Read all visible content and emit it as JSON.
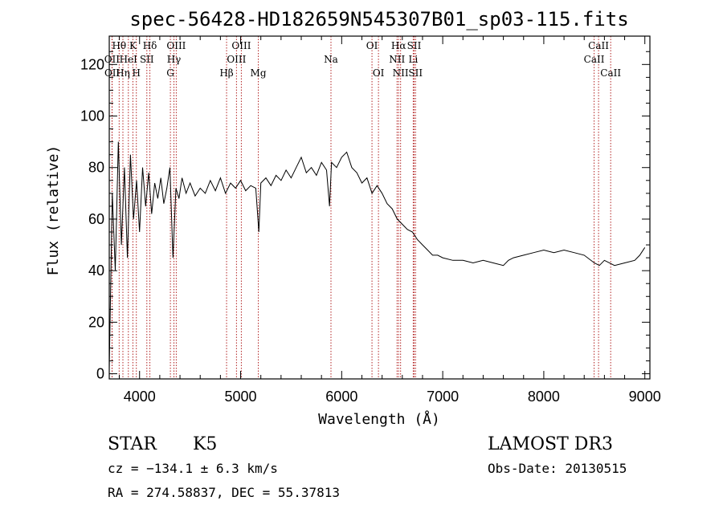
{
  "chart_data": {
    "type": "line",
    "title": "spec-56428-HD182659N545307B01_sp03-115.fits",
    "xlabel": "Wavelength (Å)",
    "ylabel": "Flux (relative)",
    "xlim": [
      3700,
      9050
    ],
    "ylim": [
      -2,
      131
    ],
    "xticks": [
      4000,
      5000,
      6000,
      7000,
      8000,
      9000
    ],
    "yticks": [
      0,
      20,
      40,
      60,
      80,
      100,
      120
    ],
    "line_color": "#000000",
    "marker_color": "#b22222",
    "series": [
      {
        "name": "flux",
        "x": [
          3700,
          3730,
          3760,
          3790,
          3820,
          3850,
          3880,
          3910,
          3940,
          3970,
          4000,
          4030,
          4060,
          4090,
          4120,
          4150,
          4180,
          4210,
          4240,
          4270,
          4300,
          4330,
          4360,
          4390,
          4420,
          4460,
          4500,
          4550,
          4600,
          4650,
          4700,
          4750,
          4800,
          4850,
          4900,
          4950,
          5000,
          5050,
          5100,
          5150,
          5180,
          5200,
          5250,
          5300,
          5350,
          5400,
          5450,
          5500,
          5550,
          5600,
          5650,
          5700,
          5750,
          5800,
          5850,
          5880,
          5900,
          5950,
          6000,
          6050,
          6100,
          6150,
          6200,
          6250,
          6300,
          6350,
          6400,
          6450,
          6500,
          6550,
          6600,
          6650,
          6700,
          6750,
          6800,
          6850,
          6900,
          6950,
          7000,
          7100,
          7200,
          7300,
          7400,
          7500,
          7600,
          7650,
          7700,
          7800,
          7900,
          8000,
          8100,
          8200,
          8300,
          8400,
          8500,
          8550,
          8600,
          8700,
          8800,
          8900,
          8950,
          9000
        ],
        "y": [
          2,
          70,
          40,
          90,
          50,
          80,
          45,
          85,
          60,
          75,
          55,
          80,
          65,
          78,
          62,
          74,
          68,
          76,
          66,
          72,
          80,
          45,
          72,
          68,
          76,
          70,
          74,
          69,
          72,
          70,
          75,
          71,
          76,
          70,
          74,
          72,
          75,
          71,
          73,
          72,
          55,
          74,
          76,
          73,
          77,
          75,
          79,
          76,
          80,
          84,
          78,
          80,
          77,
          82,
          79,
          65,
          82,
          80,
          84,
          86,
          80,
          78,
          74,
          76,
          70,
          73,
          70,
          66,
          64,
          60,
          58,
          56,
          55,
          52,
          50,
          48,
          46,
          46,
          45,
          44,
          44,
          43,
          44,
          43,
          42,
          44,
          45,
          46,
          47,
          48,
          47,
          48,
          47,
          46,
          43,
          42,
          44,
          42,
          43,
          44,
          46,
          49
        ]
      }
    ],
    "spectral_lines": [
      {
        "label": "Hθ",
        "x": 3798,
        "row": 0
      },
      {
        "label": "OII",
        "x": 3727,
        "row": 1
      },
      {
        "label": "OII",
        "x": 3729,
        "row": 2
      },
      {
        "label": "Hη",
        "x": 3835,
        "row": 2
      },
      {
        "label": "HeI",
        "x": 3889,
        "row": 1
      },
      {
        "label": "K",
        "x": 3934,
        "row": 0
      },
      {
        "label": "H",
        "x": 3968,
        "row": 2
      },
      {
        "label": "SII",
        "x": 4072,
        "row": 1
      },
      {
        "label": "Hδ",
        "x": 4102,
        "row": 0
      },
      {
        "label": "OIII",
        "x": 4363,
        "row": 0
      },
      {
        "label": "Hγ",
        "x": 4340,
        "row": 1
      },
      {
        "label": "G",
        "x": 4305,
        "row": 2
      },
      {
        "label": "Hβ",
        "x": 4861,
        "row": 2
      },
      {
        "label": "OIII",
        "x": 5007,
        "row": 0
      },
      {
        "label": "OIII",
        "x": 4959,
        "row": 1
      },
      {
        "label": "Mg",
        "x": 5175,
        "row": 2
      },
      {
        "label": "Na",
        "x": 5894,
        "row": 1
      },
      {
        "label": "OI",
        "x": 6300,
        "row": 0
      },
      {
        "label": "OI",
        "x": 6364,
        "row": 2
      },
      {
        "label": "Hα",
        "x": 6563,
        "row": 0
      },
      {
        "label": "NII",
        "x": 6548,
        "row": 1
      },
      {
        "label": "NII",
        "x": 6583,
        "row": 2
      },
      {
        "label": "SII",
        "x": 6717,
        "row": 0
      },
      {
        "label": "Li",
        "x": 6708,
        "row": 1
      },
      {
        "label": "SII",
        "x": 6731,
        "row": 2
      },
      {
        "label": "CaII",
        "x": 8542,
        "row": 0
      },
      {
        "label": "CaII",
        "x": 8498,
        "row": 1
      },
      {
        "label": "CaII",
        "x": 8662,
        "row": 2
      }
    ]
  },
  "info": {
    "object_type": "STAR",
    "subclass": "K5",
    "survey": "LAMOST DR3",
    "cz": "cz = −134.1 ± 6.3 km/s",
    "obs_date": "Obs-Date: 20130515",
    "coords": "RA = 274.58837, DEC =  55.37813"
  }
}
